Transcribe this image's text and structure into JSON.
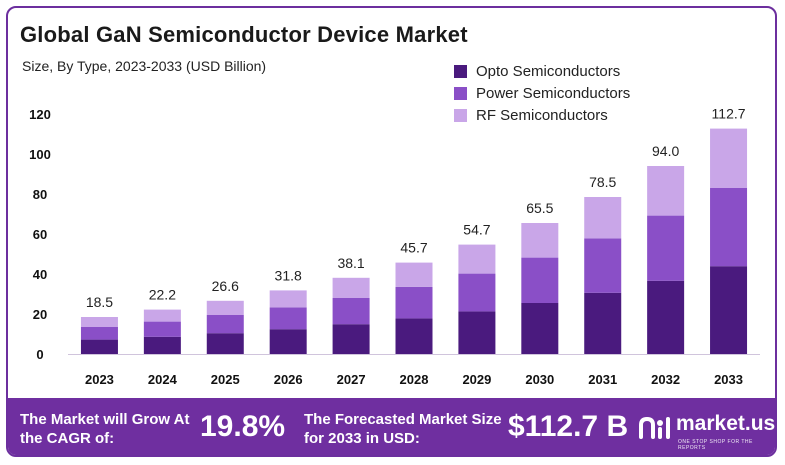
{
  "header": {
    "title": "Global GaN Semiconductor Device Market",
    "subtitle": "Size, By Type, 2023-2033 (USD Billion)"
  },
  "colors": {
    "opto": "#4a1a7e",
    "power": "#8a4fc7",
    "rf": "#c9a6e8",
    "footer_bg": "#6f2fa0",
    "border": "#6c2f9e"
  },
  "chart_data": {
    "type": "bar",
    "stacked": true,
    "title": "Global GaN Semiconductor Device Market",
    "subtitle": "Size, By Type, 2023-2033 (USD Billion)",
    "xlabel": "",
    "ylabel": "",
    "ylim": [
      0,
      120
    ],
    "yticks": [
      0,
      20,
      40,
      60,
      80,
      100,
      120
    ],
    "categories": [
      "2023",
      "2024",
      "2025",
      "2026",
      "2027",
      "2028",
      "2029",
      "2030",
      "2031",
      "2032",
      "2033"
    ],
    "series": [
      {
        "name": "Opto Semiconductors",
        "values": [
          7.2,
          8.6,
          10.4,
          12.4,
          14.9,
          17.8,
          21.3,
          25.5,
          30.6,
          36.6,
          43.9
        ]
      },
      {
        "name": "Power Semiconductors",
        "values": [
          6.3,
          7.6,
          9.1,
          10.9,
          13.1,
          15.8,
          18.9,
          22.7,
          27.2,
          32.6,
          39.1
        ]
      },
      {
        "name": "RF Semiconductors",
        "values": [
          5.0,
          6.0,
          7.1,
          8.5,
          10.1,
          12.1,
          14.5,
          17.3,
          20.7,
          24.8,
          29.7
        ]
      }
    ],
    "totals": [
      "18.5",
      "22.2",
      "26.6",
      "31.8",
      "38.1",
      "45.7",
      "54.7",
      "65.5",
      "78.5",
      "94.0",
      "112.7"
    ],
    "legend_position": "top-right"
  },
  "footer": {
    "cagr_label": "The Market will Grow At the CAGR of:",
    "cagr_value": "19.8%",
    "forecast_label": "The Forecasted Market Size for 2033 in USD:",
    "forecast_value": "$112.7 B",
    "brand_name": "market.us",
    "brand_tagline": "ONE STOP SHOP FOR THE REPORTS"
  }
}
